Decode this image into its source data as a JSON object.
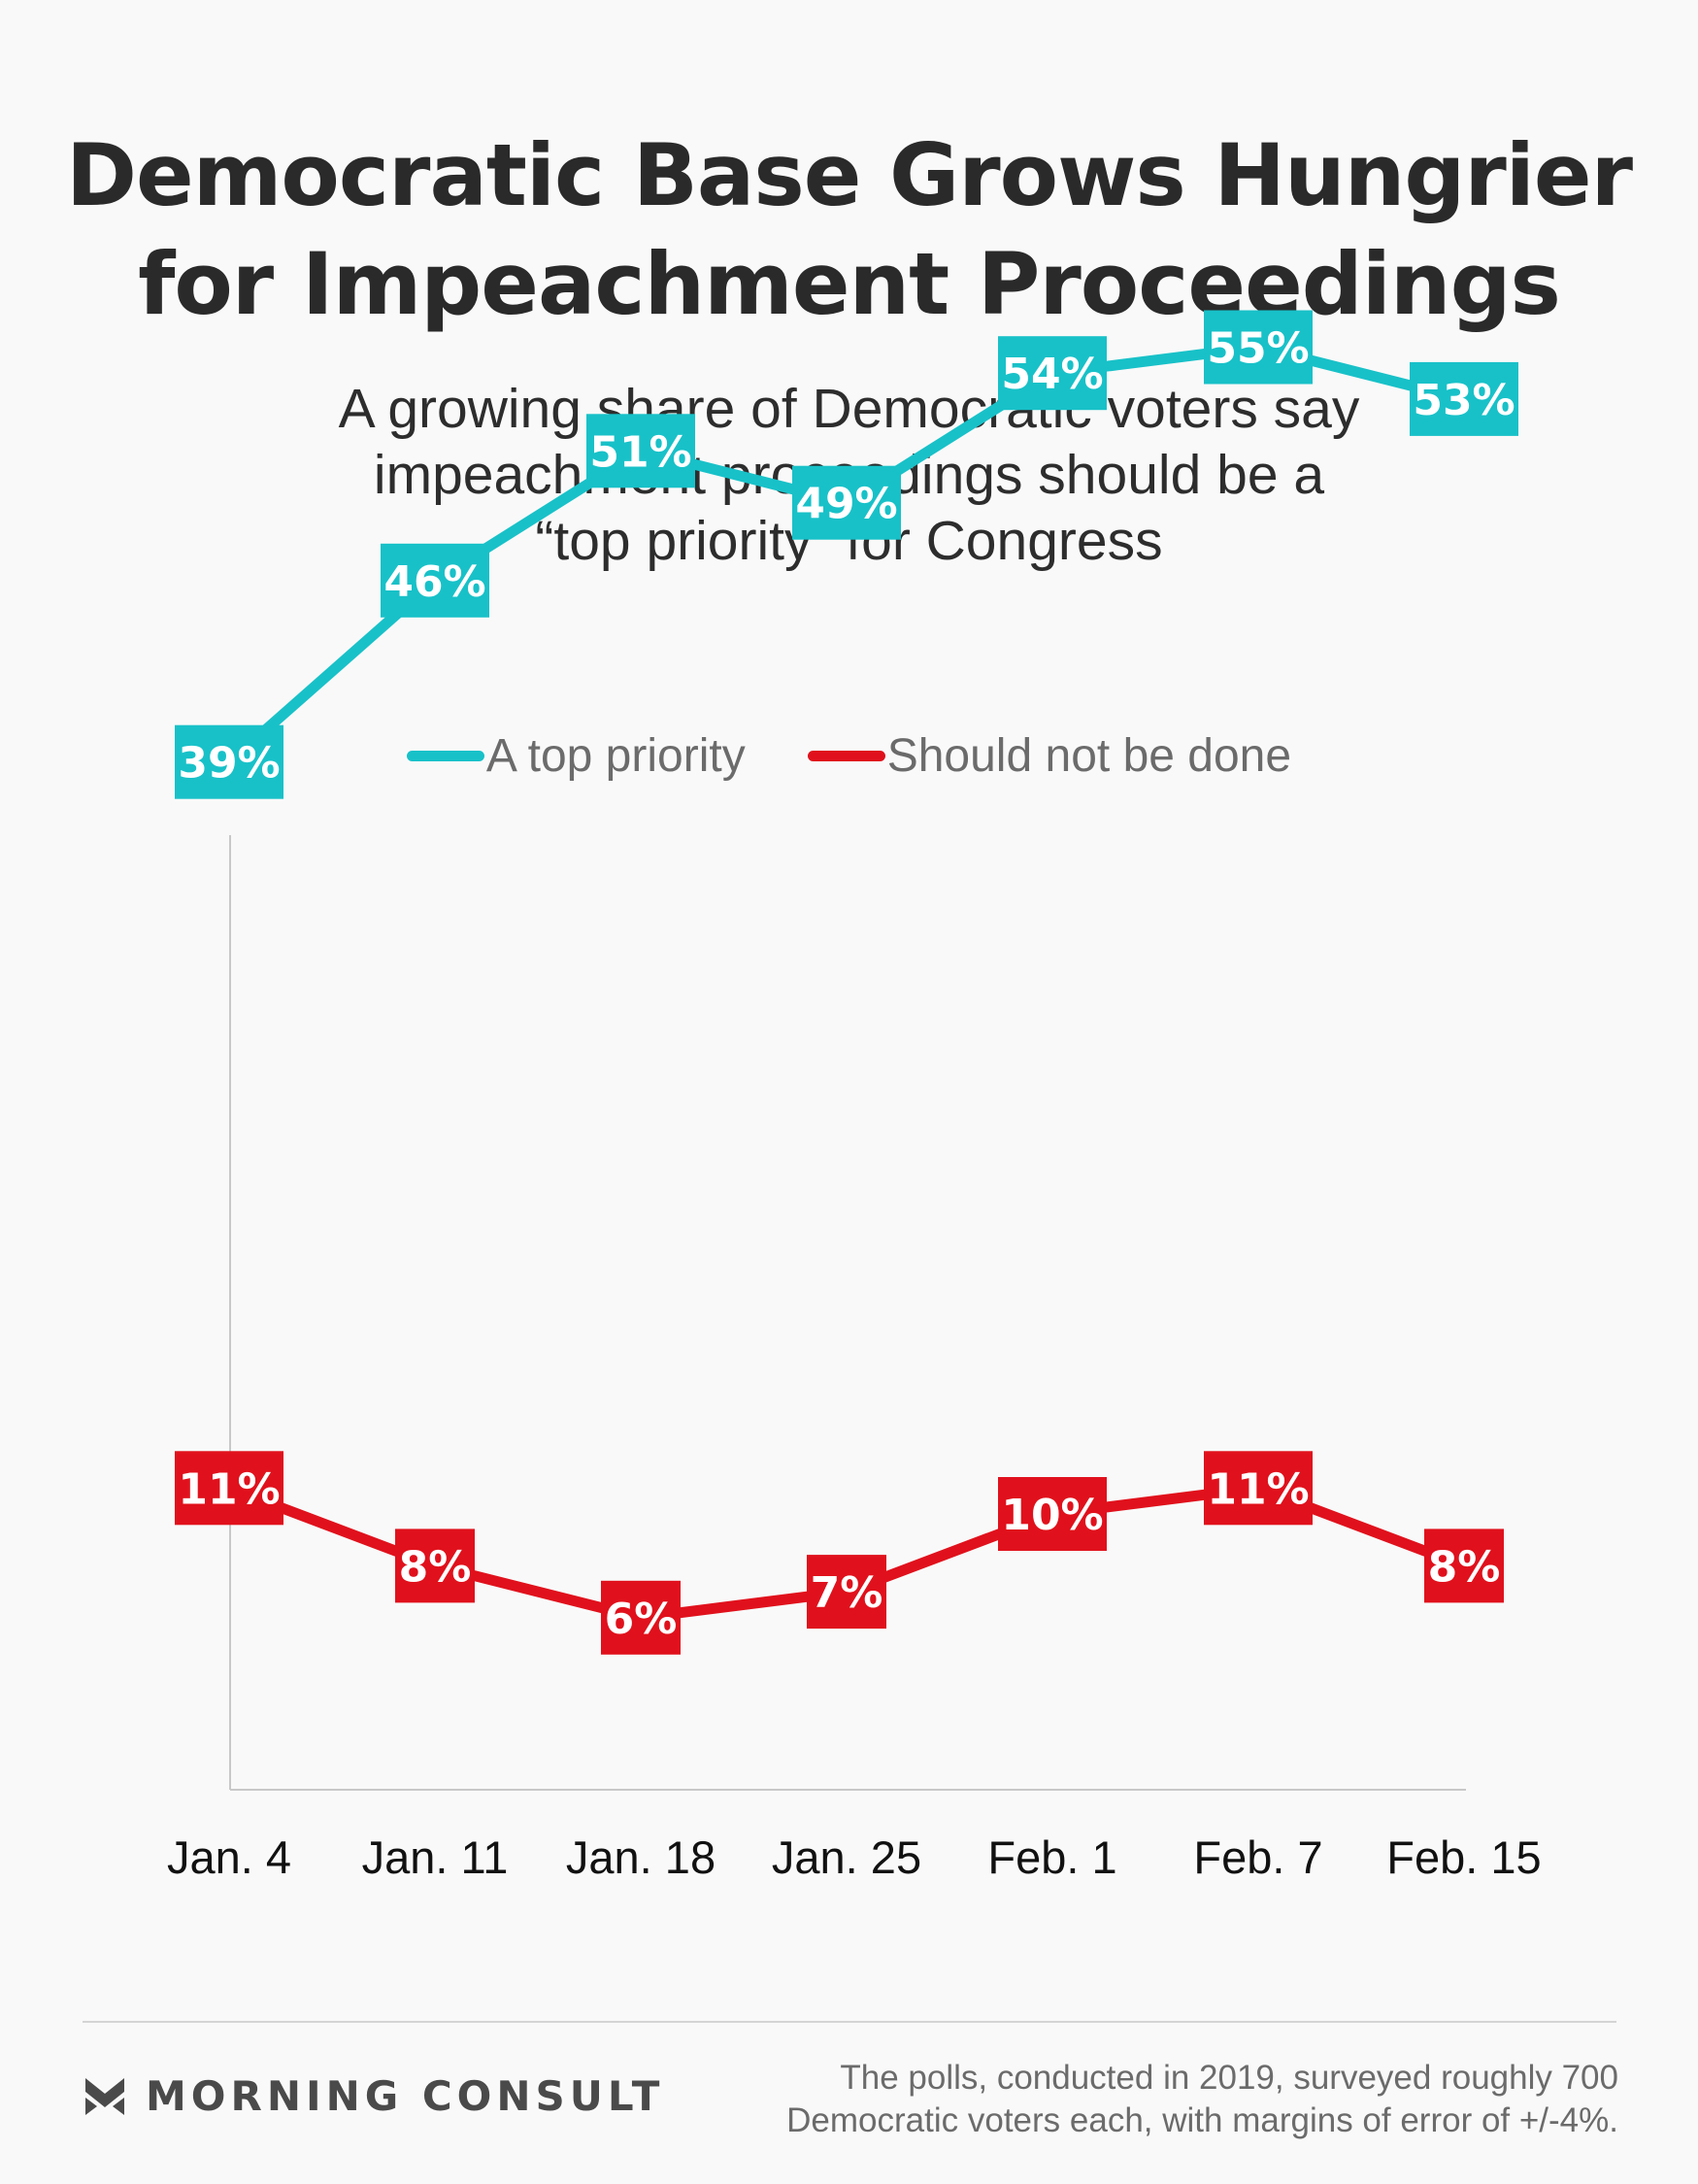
{
  "header": {
    "title_line1": "Democratic Base Grows Hungrier",
    "title_line2": "for Impeachment Proceedings",
    "subtitle_line1": "A growing share of Democratic voters say",
    "subtitle_line2": "impeachment proceedings should be a",
    "subtitle_line3": "“top priority” for Congress"
  },
  "colors": {
    "top_priority": "#18c1c8",
    "should_not": "#e0111c",
    "axis": "#c8c8c8",
    "background": "#f9f9f9"
  },
  "chart_data": {
    "type": "line",
    "title": "Democratic Base Grows Hungrier for Impeachment Proceedings",
    "subtitle": "A growing share of Democratic voters say impeachment proceedings should be a “top priority” for Congress",
    "categories": [
      "Jan. 4",
      "Jan. 11",
      "Jan. 18",
      "Jan. 25",
      "Feb. 1",
      "Feb. 7",
      "Feb. 15"
    ],
    "series": [
      {
        "name": "A top priority",
        "values": [
          39,
          46,
          51,
          49,
          54,
          55,
          53
        ],
        "labels": [
          "39%",
          "46%",
          "51%",
          "49%",
          "54%",
          "55%",
          "53%"
        ]
      },
      {
        "name": "Should not be done",
        "values": [
          11,
          8,
          6,
          7,
          10,
          11,
          8
        ],
        "labels": [
          "11%",
          "8%",
          "6%",
          "7%",
          "10%",
          "11%",
          "8%"
        ]
      }
    ],
    "ylim": [
      0,
      62
    ],
    "grid": false,
    "legend_position": "top-center",
    "xlabel": "",
    "ylabel": ""
  },
  "footer": {
    "brand": "MORNING CONSULT",
    "note_line1": "The polls, conducted in 2019, surveyed roughly 700",
    "note_line2": "Democratic voters each, with margins of error of +/-4%."
  }
}
